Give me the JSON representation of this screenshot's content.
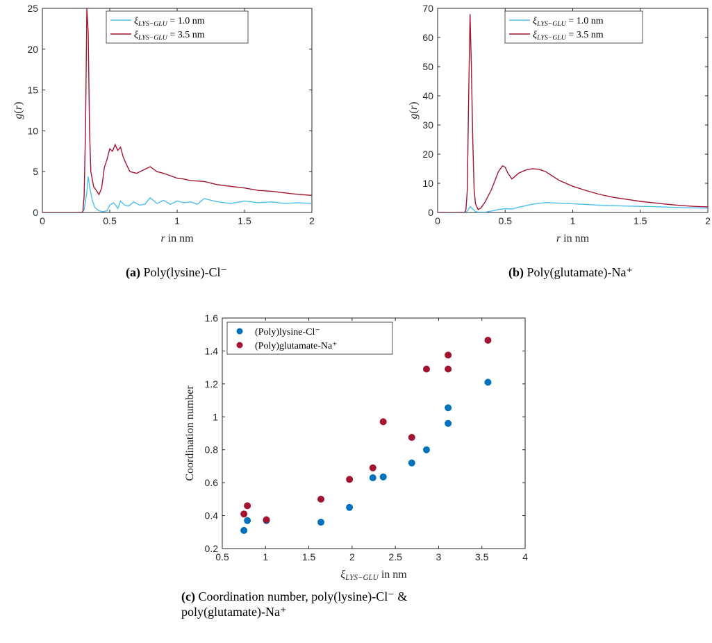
{
  "chart_data": [
    {
      "id": "a",
      "type": "line",
      "caption_tag": "(a)",
      "caption": "Poly(lysine)-Cl⁻",
      "xlabel": "r in nm",
      "ylabel": "g(r)",
      "xlim": [
        0,
        2
      ],
      "ylim": [
        0,
        25
      ],
      "xticks": [
        0,
        0.5,
        1,
        1.5,
        2
      ],
      "xtick_labels": [
        "0",
        "0.5",
        "1",
        "1.5",
        "2"
      ],
      "yticks": [
        0,
        5,
        10,
        15,
        20,
        25
      ],
      "ytick_labels": [
        "0",
        "5",
        "10",
        "15",
        "20",
        "25"
      ],
      "grid": false,
      "legend_position": "top-center",
      "series": [
        {
          "name": "ξLYS−GLU = 1.0 nm",
          "color": "#4DBEEE",
          "x": [
            0,
            0.29,
            0.31,
            0.33,
            0.34,
            0.35,
            0.37,
            0.39,
            0.42,
            0.45,
            0.48,
            0.5,
            0.53,
            0.56,
            0.58,
            0.61,
            0.64,
            0.68,
            0.72,
            0.76,
            0.8,
            0.85,
            0.9,
            0.95,
            1.0,
            1.05,
            1.1,
            1.15,
            1.2,
            1.3,
            1.4,
            1.5,
            1.6,
            1.7,
            1.8,
            1.9,
            2.0
          ],
          "y": [
            0,
            0,
            0.3,
            2.5,
            4.4,
            3.2,
            1.5,
            0.6,
            0.2,
            0.1,
            0.2,
            0.9,
            1.2,
            0.5,
            1.4,
            0.9,
            0.8,
            1.3,
            0.9,
            1.0,
            1.8,
            1.1,
            1.5,
            1.0,
            1.4,
            1.2,
            1.3,
            1.0,
            1.7,
            1.3,
            1.1,
            1.4,
            1.2,
            1.3,
            1.1,
            1.2,
            1.1
          ]
        },
        {
          "name": "ξLYS−GLU = 3.5 nm",
          "color": "#A2142F",
          "x": [
            0,
            0.3,
            0.31,
            0.32,
            0.33,
            0.34,
            0.35,
            0.36,
            0.38,
            0.4,
            0.42,
            0.44,
            0.46,
            0.48,
            0.5,
            0.52,
            0.54,
            0.56,
            0.58,
            0.6,
            0.62,
            0.65,
            0.7,
            0.75,
            0.8,
            0.85,
            0.9,
            0.95,
            1.0,
            1.05,
            1.1,
            1.2,
            1.3,
            1.4,
            1.5,
            1.6,
            1.7,
            1.8,
            1.9,
            2.0
          ],
          "y": [
            0,
            0,
            2,
            10,
            25,
            22,
            10,
            5,
            3.2,
            2.7,
            2.2,
            3.0,
            5.5,
            6.5,
            7.8,
            7.5,
            8.3,
            7.6,
            8.0,
            6.8,
            6.0,
            5.0,
            4.8,
            5.2,
            5.6,
            5.0,
            4.8,
            4.5,
            4.2,
            4.1,
            3.9,
            3.8,
            3.4,
            3.2,
            3.0,
            2.7,
            2.6,
            2.4,
            2.2,
            2.1
          ]
        }
      ]
    },
    {
      "id": "b",
      "type": "line",
      "caption_tag": "(b)",
      "caption": "Poly(glutamate)-Na⁺",
      "xlabel": "r in nm",
      "ylabel": "g(r)",
      "xlim": [
        0,
        2
      ],
      "ylim": [
        0,
        70
      ],
      "xticks": [
        0,
        0.5,
        1,
        1.5,
        2
      ],
      "xtick_labels": [
        "0",
        "0.5",
        "1",
        "1.5",
        "2"
      ],
      "yticks": [
        0,
        10,
        20,
        30,
        40,
        50,
        60,
        70
      ],
      "ytick_labels": [
        "0",
        "10",
        "20",
        "30",
        "40",
        "50",
        "60",
        "70"
      ],
      "grid": false,
      "legend_position": "top-right",
      "series": [
        {
          "name": "ξLYS−GLU = 1.0 nm",
          "color": "#4DBEEE",
          "x": [
            0,
            0.2,
            0.22,
            0.24,
            0.26,
            0.28,
            0.3,
            0.35,
            0.4,
            0.45,
            0.5,
            0.55,
            0.6,
            0.7,
            0.8,
            0.9,
            1.0,
            1.2,
            1.4,
            1.6,
            1.8,
            2.0
          ],
          "y": [
            0,
            0,
            0.5,
            2.0,
            1.2,
            0.3,
            0.1,
            0.1,
            0.5,
            1.0,
            1.3,
            1.2,
            1.8,
            2.8,
            3.4,
            3.2,
            3.0,
            2.5,
            2.2,
            2.0,
            1.7,
            1.5
          ]
        },
        {
          "name": "ξLYS−GLU = 3.5 nm",
          "color": "#A2142F",
          "x": [
            0,
            0.2,
            0.21,
            0.22,
            0.23,
            0.24,
            0.25,
            0.26,
            0.27,
            0.28,
            0.3,
            0.32,
            0.35,
            0.4,
            0.45,
            0.48,
            0.5,
            0.52,
            0.55,
            0.6,
            0.65,
            0.7,
            0.75,
            0.8,
            0.85,
            0.9,
            1.0,
            1.1,
            1.2,
            1.3,
            1.4,
            1.5,
            1.6,
            1.7,
            1.8,
            1.9,
            2.0
          ],
          "y": [
            0,
            0,
            1,
            8,
            40,
            68,
            50,
            25,
            8,
            3,
            1,
            1.5,
            3.5,
            8,
            14,
            16,
            15.5,
            13.5,
            11.5,
            13.5,
            14.5,
            15,
            14.8,
            14,
            12.5,
            11,
            9,
            7.5,
            6.2,
            5.2,
            4.5,
            3.8,
            3.3,
            2.8,
            2.4,
            2.1,
            1.9
          ]
        }
      ]
    },
    {
      "id": "c",
      "type": "scatter",
      "caption_tag": "(c)",
      "caption": "Coordination number, poly(lysine)-Cl⁻ & poly(glutamate)-Na⁺",
      "xlabel": "ξLYS−GLU in nm",
      "ylabel": "Coordination number",
      "xlim": [
        0.5,
        4
      ],
      "ylim": [
        0.2,
        1.6
      ],
      "xticks": [
        0.5,
        1,
        1.5,
        2,
        2.5,
        3,
        3.5,
        4
      ],
      "xtick_labels": [
        "0.5",
        "1",
        "1.5",
        "2",
        "2.5",
        "3",
        "3.5",
        "4"
      ],
      "yticks": [
        0.2,
        0.4,
        0.6,
        0.8,
        1,
        1.2,
        1.4,
        1.6
      ],
      "ytick_labels": [
        "0.2",
        "0.4",
        "0.6",
        "0.8",
        "1",
        "1.2",
        "1.4",
        "1.6"
      ],
      "grid": false,
      "legend_position": "top-left",
      "series": [
        {
          "name": "(Poly)lysine-Cl⁻",
          "color": "#0072BD",
          "x": [
            0.75,
            0.79,
            1.01,
            1.64,
            1.97,
            2.24,
            2.36,
            2.69,
            2.86,
            3.11,
            3.11,
            3.57
          ],
          "y": [
            0.31,
            0.37,
            0.37,
            0.36,
            0.45,
            0.63,
            0.635,
            0.72,
            0.8,
            0.96,
            1.055,
            1.21
          ]
        },
        {
          "name": "(Poly)glutamate-Na⁺",
          "color": "#A2142F",
          "x": [
            0.75,
            0.79,
            1.01,
            1.64,
            1.97,
            2.24,
            2.36,
            2.69,
            2.86,
            3.11,
            3.11,
            3.57
          ],
          "y": [
            0.41,
            0.46,
            0.375,
            0.5,
            0.62,
            0.69,
            0.97,
            0.875,
            1.29,
            1.29,
            1.375,
            1.465
          ]
        }
      ]
    }
  ]
}
